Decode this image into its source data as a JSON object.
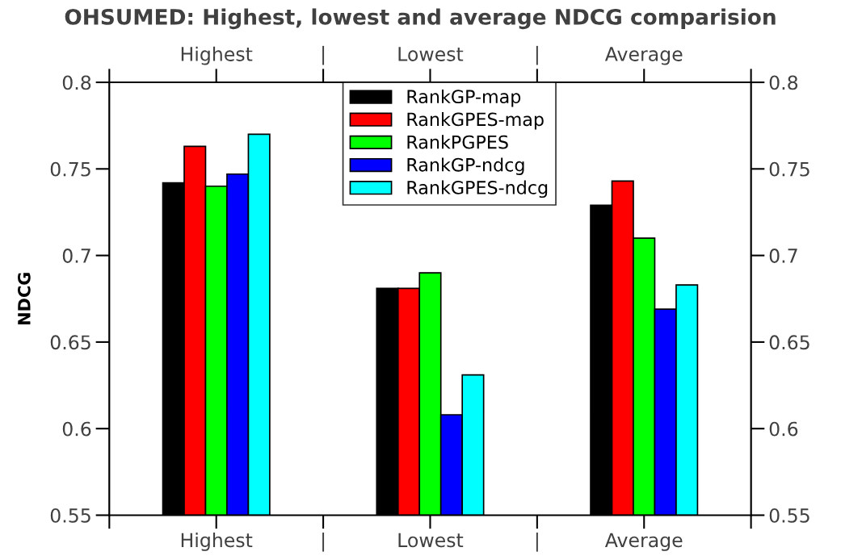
{
  "chart_data": {
    "type": "bar",
    "title": "OHSUMED: Highest, lowest and average NDCG comparision",
    "ylabel": "NDCG",
    "categories": [
      "Highest",
      "Lowest",
      "Average"
    ],
    "annotations": [
      "|",
      "|"
    ],
    "series": [
      {
        "name": "RankGP-map",
        "color": "#000000",
        "values": [
          0.742,
          0.681,
          0.729
        ]
      },
      {
        "name": "RankGPES-map",
        "color": "#ff0000",
        "values": [
          0.763,
          0.681,
          0.743
        ]
      },
      {
        "name": "RankPGPES",
        "color": "#00ff00",
        "values": [
          0.74,
          0.69,
          0.71
        ]
      },
      {
        "name": "RankGP-ndcg",
        "color": "#0000ff",
        "values": [
          0.747,
          0.608,
          0.669
        ]
      },
      {
        "name": "RankGPES-ndcg",
        "color": "#00ffff",
        "values": [
          0.77,
          0.631,
          0.683
        ]
      }
    ],
    "ylim": [
      0.55,
      0.8
    ],
    "yticks": [
      0.55,
      0.6,
      0.65,
      0.7,
      0.75,
      0.8
    ],
    "y2lim": [
      0.55,
      0.8
    ],
    "y2ticks": [
      0.55,
      0.6,
      0.65,
      0.7,
      0.75,
      0.8
    ],
    "legend": "top",
    "grid": false
  }
}
